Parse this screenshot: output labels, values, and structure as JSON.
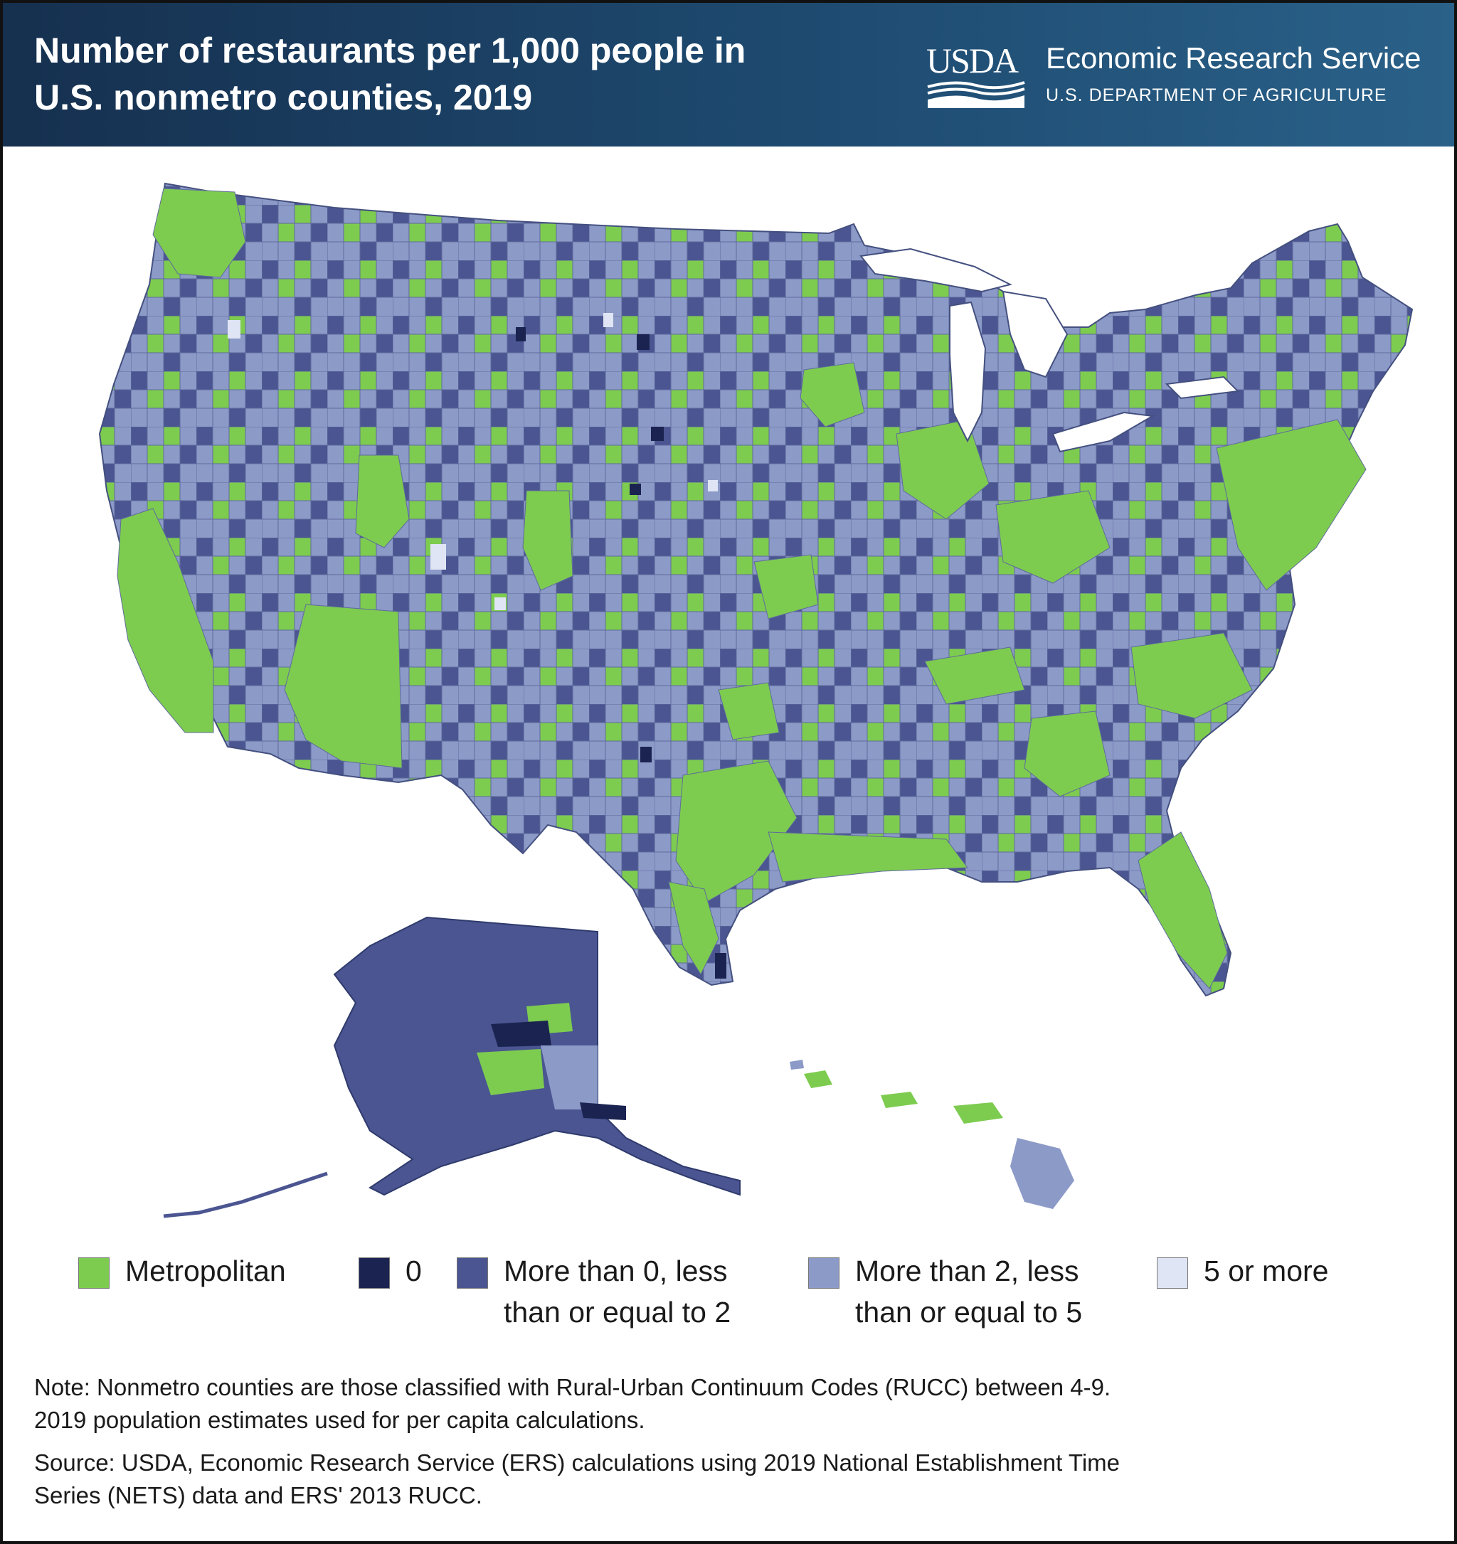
{
  "header": {
    "title_line1": "Number of restaurants per 1,000 people in",
    "title_line2": "U.S. nonmetro counties, 2019",
    "usda_logo_text": "USDA",
    "agency_name": "Economic Research Service",
    "department": "U.S. DEPARTMENT OF AGRICULTURE"
  },
  "colors": {
    "metropolitan": "#7dcc4f",
    "zero": "#1b2350",
    "more_than_0_le_2": "#4a5591",
    "more_than_2_le_5": "#8c9ac8",
    "five_or_more": "#dfe5f4",
    "header_bg": "#1d4266"
  },
  "legend": [
    {
      "key": "metropolitan",
      "label_line1": "Metropolitan",
      "label_line2": ""
    },
    {
      "key": "zero",
      "label_line1": "0",
      "label_line2": ""
    },
    {
      "key": "more_than_0_le_2",
      "label_line1": "More than 0, less",
      "label_line2": "than or equal to 2"
    },
    {
      "key": "more_than_2_le_5",
      "label_line1": "More than 2, less",
      "label_line2": "than or equal to 5"
    },
    {
      "key": "five_or_more",
      "label_line1": "5 or more",
      "label_line2": ""
    }
  ],
  "note": {
    "line1": "Note: Nonmetro counties are those classified with Rural-Urban Continuum Codes (RUCC) between 4-9.",
    "line2": "2019 population estimates used for per capita calculations."
  },
  "source": {
    "line1": "Source: USDA, Economic Research Service (ERS) calculations using 2019 National Establishment Time",
    "line2": "Series (NETS) data and ERS' 2013 RUCC."
  }
}
